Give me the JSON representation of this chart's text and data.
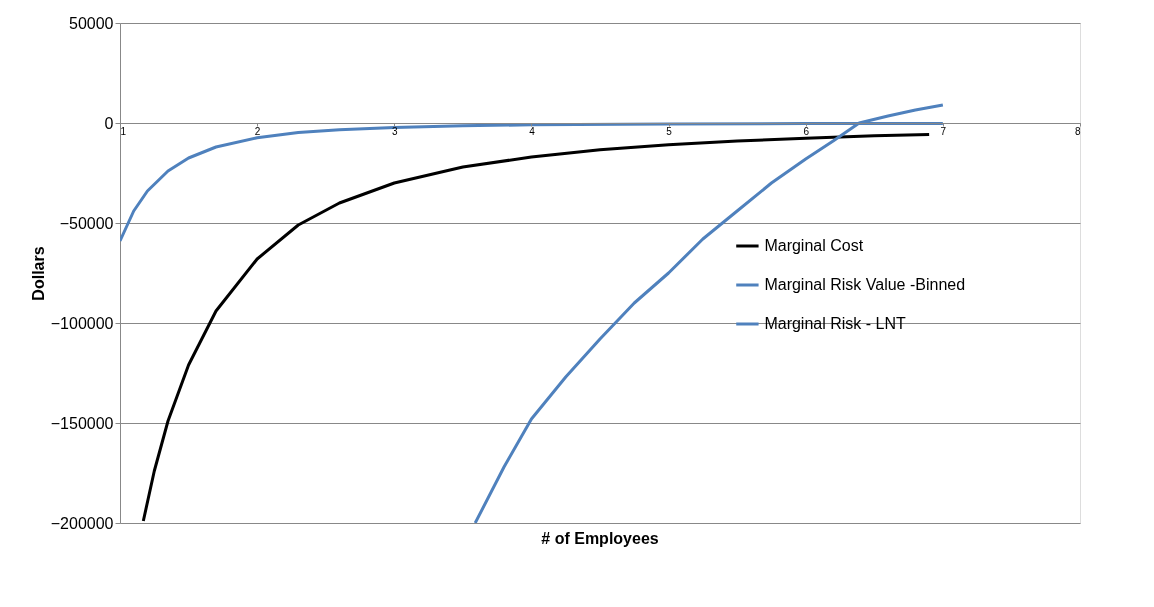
{
  "chart_data": {
    "type": "line",
    "xlabel": "# of Employees",
    "ylabel": "Dollars",
    "xlim": [
      1,
      8
    ],
    "xticks": [
      1,
      2,
      3,
      4,
      5,
      6,
      7,
      8
    ],
    "ylim": [
      -200000,
      50000
    ],
    "yticks": [
      -200000,
      -150000,
      -100000,
      -50000,
      0,
      50000
    ],
    "grid": "y",
    "legend": "right",
    "line_style": "solid",
    "marker": "none",
    "series": [
      {
        "name": "Marginal Cost",
        "color": "#000000",
        "x": [
          1.17,
          1.25,
          1.35,
          1.5,
          1.7,
          2,
          2.3,
          2.6,
          3,
          3.5,
          4,
          4.5,
          5,
          5.5,
          6,
          6.5,
          6.9
        ],
        "values": [
          -199000,
          -174000,
          -149000,
          -121000,
          -94000,
          -68000,
          -51000,
          -40000,
          -30000,
          -22000,
          -17000,
          -13400,
          -10900,
          -9000,
          -7600,
          -6400,
          -5700
        ]
      },
      {
        "name": "Marginal Risk Value -Binned",
        "color": "#4f81bd",
        "x": [
          1,
          1.1,
          1.2,
          1.35,
          1.5,
          1.7,
          2,
          2.3,
          2.6,
          3,
          3.5,
          4,
          5,
          6,
          7
        ],
        "values": [
          -59000,
          -44000,
          -34000,
          -24000,
          -17500,
          -12000,
          -7400,
          -4800,
          -3400,
          -2200,
          -1400,
          -900,
          -500,
          -300,
          -200
        ]
      },
      {
        "name": "Marginal Risk - LNT",
        "color": "#4f81bd",
        "x": [
          3.59,
          3.8,
          4,
          4.25,
          4.5,
          4.75,
          5,
          5.25,
          5.5,
          5.75,
          6,
          6.2,
          6.39,
          6.6,
          6.8,
          7
        ],
        "values": [
          -200000,
          -172000,
          -148000,
          -127000,
          -108000,
          -90000,
          -75000,
          -58000,
          -44000,
          -30000,
          -18000,
          -9000,
          0,
          3500,
          6500,
          9000
        ]
      }
    ]
  }
}
